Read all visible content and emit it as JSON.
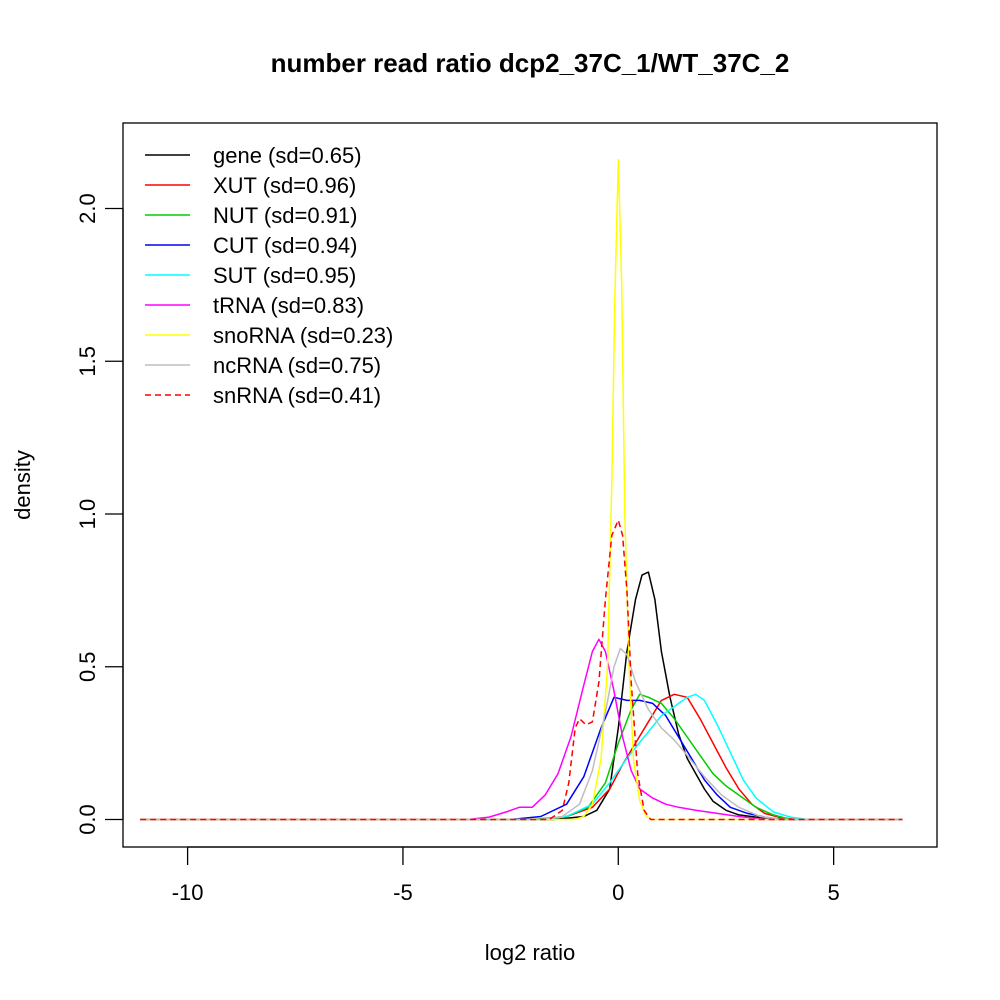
{
  "chart_data": {
    "type": "line",
    "title": "number read ratio dcp2_37C_1/WT_37C_2",
    "xlabel": "log2 ratio",
    "ylabel": "density",
    "xlim": [
      -11.5,
      7.4
    ],
    "ylim": [
      -0.09,
      2.28
    ],
    "x_ticks": [
      -10,
      -5,
      0,
      5
    ],
    "y_ticks": [
      0.0,
      0.5,
      1.0,
      1.5,
      2.0
    ],
    "x_tick_labels": [
      "-10",
      "-5",
      "0",
      "5"
    ],
    "y_tick_labels": [
      "0.0",
      "0.5",
      "1.0",
      "1.5",
      "2.0"
    ],
    "grid": false,
    "legend_position": "top-left",
    "series": [
      {
        "name": "gene (sd=0.65)",
        "color": "#000000",
        "dash": false,
        "x": [
          -11.1,
          -1.5,
          -0.8,
          -0.5,
          -0.2,
          0.0,
          0.2,
          0.4,
          0.55,
          0.7,
          0.85,
          1.0,
          1.2,
          1.4,
          1.6,
          1.8,
          2.0,
          2.2,
          2.5,
          2.8,
          3.2,
          3.6,
          4.0,
          6.6
        ],
        "y": [
          0,
          0,
          0.01,
          0.03,
          0.1,
          0.3,
          0.55,
          0.72,
          0.8,
          0.81,
          0.72,
          0.55,
          0.4,
          0.28,
          0.2,
          0.15,
          0.1,
          0.06,
          0.03,
          0.015,
          0.008,
          0.003,
          0,
          0
        ]
      },
      {
        "name": "XUT (sd=0.96)",
        "color": "#ff0000",
        "dash": false,
        "x": [
          -11.1,
          -2.0,
          -1.2,
          -0.6,
          -0.2,
          0.1,
          0.4,
          0.7,
          1.0,
          1.3,
          1.6,
          1.9,
          2.2,
          2.5,
          2.8,
          3.1,
          3.4,
          3.8,
          4.2,
          6.6
        ],
        "y": [
          0,
          0,
          0.01,
          0.04,
          0.1,
          0.18,
          0.25,
          0.32,
          0.39,
          0.41,
          0.4,
          0.33,
          0.25,
          0.17,
          0.1,
          0.05,
          0.02,
          0.005,
          0,
          0
        ]
      },
      {
        "name": "NUT (sd=0.91)",
        "color": "#00cd00",
        "dash": false,
        "x": [
          -11.1,
          -2.0,
          -1.2,
          -0.7,
          -0.3,
          0.0,
          0.3,
          0.5,
          0.7,
          1.0,
          1.3,
          1.6,
          1.9,
          2.2,
          2.5,
          2.8,
          3.2,
          3.6,
          4.0,
          6.6
        ],
        "y": [
          0,
          0,
          0.01,
          0.04,
          0.12,
          0.25,
          0.36,
          0.41,
          0.4,
          0.38,
          0.33,
          0.27,
          0.21,
          0.15,
          0.11,
          0.08,
          0.04,
          0.015,
          0,
          0
        ]
      },
      {
        "name": "CUT (sd=0.94)",
        "color": "#0000ff",
        "dash": false,
        "x": [
          -11.1,
          -2.5,
          -1.8,
          -1.2,
          -0.8,
          -0.4,
          -0.1,
          0.2,
          0.5,
          0.8,
          1.1,
          1.4,
          1.7,
          2.0,
          2.3,
          2.6,
          3.0,
          3.4,
          3.8,
          6.6
        ],
        "y": [
          0,
          0,
          0.01,
          0.05,
          0.14,
          0.3,
          0.4,
          0.39,
          0.39,
          0.38,
          0.34,
          0.27,
          0.2,
          0.13,
          0.08,
          0.04,
          0.02,
          0.008,
          0,
          0
        ]
      },
      {
        "name": "SUT (sd=0.95)",
        "color": "#00ffff",
        "dash": false,
        "x": [
          -11.1,
          -1.8,
          -1.2,
          -0.6,
          -0.2,
          0.2,
          0.6,
          1.0,
          1.3,
          1.6,
          1.8,
          2.0,
          2.3,
          2.6,
          2.9,
          3.2,
          3.6,
          4.0,
          4.4,
          6.6
        ],
        "y": [
          0,
          0,
          0.01,
          0.05,
          0.12,
          0.2,
          0.27,
          0.34,
          0.37,
          0.4,
          0.41,
          0.39,
          0.31,
          0.22,
          0.13,
          0.07,
          0.025,
          0.008,
          0,
          0
        ]
      },
      {
        "name": "tRNA (sd=0.83)",
        "color": "#ff00ff",
        "dash": false,
        "x": [
          -11.1,
          -3.5,
          -3.0,
          -2.6,
          -2.3,
          -2.0,
          -1.7,
          -1.4,
          -1.1,
          -0.8,
          -0.6,
          -0.45,
          -0.3,
          -0.1,
          0.1,
          0.3,
          0.5,
          0.8,
          1.1,
          1.4,
          1.8,
          2.3,
          2.8,
          3.4,
          6.6
        ],
        "y": [
          0,
          0,
          0.008,
          0.025,
          0.04,
          0.04,
          0.08,
          0.15,
          0.27,
          0.44,
          0.55,
          0.59,
          0.55,
          0.42,
          0.27,
          0.16,
          0.1,
          0.07,
          0.05,
          0.04,
          0.03,
          0.02,
          0.01,
          0,
          0
        ]
      },
      {
        "name": "snoRNA (sd=0.23)",
        "color": "#ffff00",
        "dash": false,
        "x": [
          -11.1,
          -1.0,
          -0.8,
          -0.6,
          -0.4,
          -0.25,
          -0.15,
          -0.08,
          0.0,
          0.08,
          0.15,
          0.25,
          0.35,
          0.5,
          0.65,
          0.8,
          6.6
        ],
        "y": [
          0,
          0,
          0.01,
          0.05,
          0.2,
          0.5,
          1.1,
          1.7,
          2.16,
          1.75,
          1.0,
          0.5,
          0.2,
          0.06,
          0.01,
          0,
          0
        ]
      },
      {
        "name": "ncRNA (sd=0.75)",
        "color": "#bebebe",
        "dash": false,
        "x": [
          -11.1,
          -1.8,
          -1.3,
          -0.9,
          -0.6,
          -0.3,
          -0.1,
          0.05,
          0.2,
          0.4,
          0.7,
          1.0,
          1.3,
          1.6,
          2.0,
          2.4,
          2.8,
          3.3,
          3.8,
          6.6
        ],
        "y": [
          0,
          0,
          0.01,
          0.05,
          0.16,
          0.35,
          0.5,
          0.56,
          0.54,
          0.45,
          0.36,
          0.3,
          0.26,
          0.21,
          0.14,
          0.08,
          0.04,
          0.01,
          0,
          0
        ]
      },
      {
        "name": "snRNA (sd=0.41)",
        "color": "#ff0000",
        "dash": true,
        "x": [
          -11.1,
          -1.6,
          -1.3,
          -1.15,
          -1.0,
          -0.9,
          -0.75,
          -0.6,
          -0.45,
          -0.3,
          -0.15,
          0.0,
          0.1,
          0.2,
          0.3,
          0.45,
          0.6,
          0.75,
          6.6
        ],
        "y": [
          0,
          0,
          0.03,
          0.12,
          0.3,
          0.33,
          0.31,
          0.32,
          0.45,
          0.72,
          0.93,
          0.98,
          0.93,
          0.75,
          0.45,
          0.15,
          0.03,
          0,
          0
        ]
      }
    ]
  }
}
